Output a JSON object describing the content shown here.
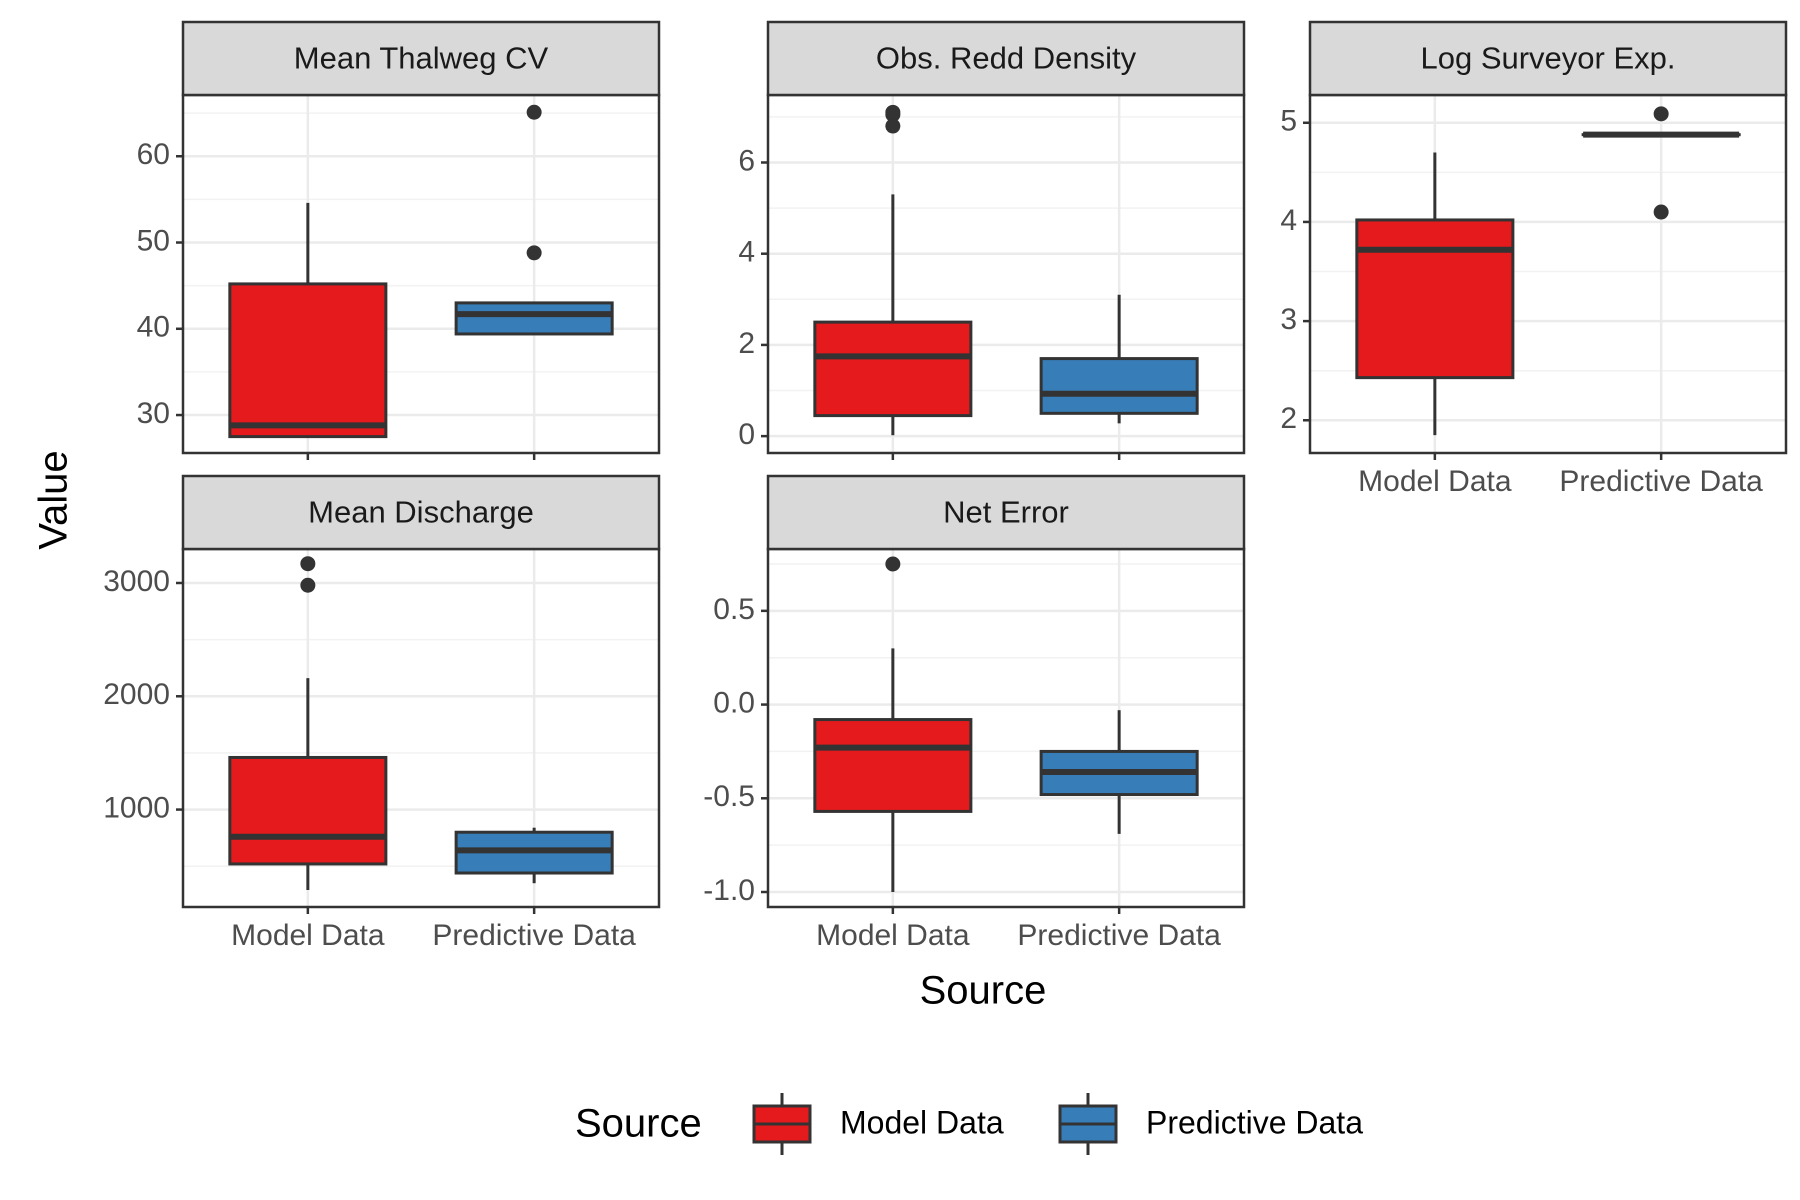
{
  "chart_data": {
    "type": "box",
    "y_axis_title": "Value",
    "x_axis_title": "Source",
    "categories": [
      "Model Data",
      "Predictive Data"
    ],
    "legend": {
      "title": "Source",
      "position": "bottom",
      "items": [
        {
          "label": "Model Data",
          "color": "#E41A1C"
        },
        {
          "label": "Predictive Data",
          "color": "#377EB8"
        }
      ]
    },
    "colors": {
      "Model Data": "#E41A1C",
      "Predictive Data": "#377EB8",
      "outline": "#333333",
      "strip": "#D9D9D9",
      "grid": "#EBEBEB"
    },
    "grid": true,
    "panels": [
      {
        "title": "Mean Thalweg CV",
        "ylim": [
          25.6,
          67.1
        ],
        "ticks": [
          30,
          40,
          50,
          60
        ],
        "tick_labels": [
          "30",
          "40",
          "50",
          "60"
        ],
        "boxes": [
          {
            "category": "Model Data",
            "whisker_low": 27.5,
            "q1": 27.5,
            "median": 28.8,
            "q3": 45.2,
            "whisker_high": 54.6,
            "outliers": []
          },
          {
            "category": "Predictive Data",
            "whisker_low": 39.4,
            "q1": 39.4,
            "median": 41.7,
            "q3": 43.0,
            "whisker_high": 43.0,
            "outliers": [
              48.8,
              65.1
            ]
          }
        ]
      },
      {
        "title": "Obs. Redd Density",
        "ylim": [
          -0.37,
          7.48
        ],
        "ticks": [
          0,
          2,
          4,
          6
        ],
        "tick_labels": [
          "0",
          "2",
          "4",
          "6"
        ],
        "boxes": [
          {
            "category": "Model Data",
            "whisker_low": 0.02,
            "q1": 0.45,
            "median": 1.75,
            "q3": 2.5,
            "whisker_high": 5.3,
            "outliers": [
              6.8,
              7.05,
              7.1
            ]
          },
          {
            "category": "Predictive Data",
            "whisker_low": 0.28,
            "q1": 0.5,
            "median": 0.93,
            "q3": 1.7,
            "whisker_high": 3.1,
            "outliers": []
          }
        ]
      },
      {
        "title": "Log Surveyor Exp.",
        "ylim": [
          1.67,
          5.28
        ],
        "ticks": [
          2,
          3,
          4,
          5
        ],
        "tick_labels": [
          "2",
          "3",
          "4",
          "5"
        ],
        "boxes": [
          {
            "category": "Model Data",
            "whisker_low": 1.85,
            "q1": 2.43,
            "median": 3.72,
            "q3": 4.02,
            "whisker_high": 4.7,
            "outliers": []
          },
          {
            "category": "Predictive Data",
            "whisker_low": 4.88,
            "q1": 4.88,
            "median": 4.88,
            "q3": 4.88,
            "whisker_high": 4.88,
            "outliers": [
              4.1,
              5.09
            ]
          }
        ]
      },
      {
        "title": "Mean Discharge",
        "ylim": [
          140,
          3300
        ],
        "ticks": [
          1000,
          2000,
          3000
        ],
        "tick_labels": [
          "1000",
          "2000",
          "3000"
        ],
        "boxes": [
          {
            "category": "Model Data",
            "whisker_low": 290,
            "q1": 520,
            "median": 760,
            "q3": 1460,
            "whisker_high": 2160,
            "outliers": [
              2980,
              3170
            ]
          },
          {
            "category": "Predictive Data",
            "whisker_low": 350,
            "q1": 440,
            "median": 640,
            "q3": 800,
            "whisker_high": 840,
            "outliers": []
          }
        ]
      },
      {
        "title": "Net Error",
        "ylim": [
          -1.08,
          0.83
        ],
        "ticks": [
          -1.0,
          -0.5,
          0.0,
          0.5
        ],
        "tick_labels": [
          "-1.0",
          "-0.5",
          "0.0",
          "0.5"
        ],
        "boxes": [
          {
            "category": "Model Data",
            "whisker_low": -1.0,
            "q1": -0.57,
            "median": -0.23,
            "q3": -0.08,
            "whisker_high": 0.3,
            "outliers": [
              0.75
            ]
          },
          {
            "category": "Predictive Data",
            "whisker_low": -0.69,
            "q1": -0.48,
            "median": -0.36,
            "q3": -0.25,
            "whisker_high": -0.03,
            "outliers": []
          }
        ]
      }
    ]
  }
}
